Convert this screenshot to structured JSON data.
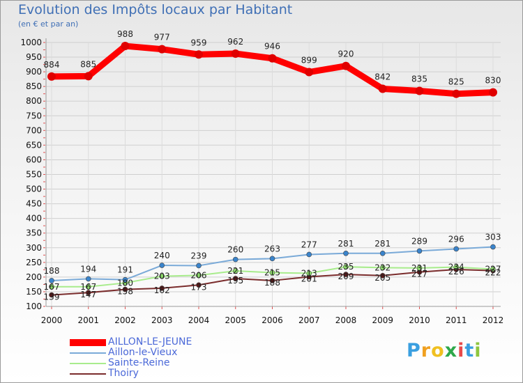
{
  "chart_data": {
    "type": "line",
    "title": "Evolution des Impôts locaux par Habitant",
    "subtitle": "(en € et par an)",
    "xlabel": "",
    "ylabel": "",
    "ylim": [
      100,
      1000
    ],
    "ytick_step": 50,
    "ytick_labels": [
      "100",
      "150",
      "200",
      "250",
      "300",
      "350",
      "400",
      "450",
      "500",
      "550",
      "600",
      "650",
      "700",
      "750",
      "800",
      "850",
      "900",
      "950",
      "1000"
    ],
    "categories": [
      "2000",
      "2001",
      "2002",
      "2003",
      "2004",
      "2005",
      "2006",
      "2007",
      "2008",
      "2009",
      "2010",
      "2011",
      "2012"
    ],
    "grid": true,
    "legend_position": "bottom-left",
    "series": [
      {
        "name": "AILLON-LE-JEUNE",
        "color": "#ff0000",
        "marker": "#e00000",
        "values": [
          884,
          885,
          988,
          977,
          959,
          962,
          946,
          899,
          920,
          842,
          835,
          825,
          830
        ]
      },
      {
        "name": "Aillon-le-Vieux",
        "color": "#7aaad8",
        "marker": "#3a84cc",
        "values": [
          188,
          194,
          191,
          240,
          239,
          260,
          263,
          277,
          281,
          281,
          289,
          296,
          303
        ]
      },
      {
        "name": "Sainte-Reine",
        "color": "#a8ec8c",
        "marker": "#8bd96a",
        "values": [
          167,
          167,
          180,
          203,
          206,
          221,
          215,
          213,
          235,
          232,
          231,
          234,
          227
        ]
      },
      {
        "name": "Thoiry",
        "color": "#7a2c2c",
        "marker": "#5a1818",
        "values": [
          139,
          147,
          158,
          162,
          173,
          195,
          188,
          201,
          209,
          205,
          217,
          226,
          222
        ]
      }
    ]
  },
  "logo": {
    "letters": [
      "P",
      "r",
      "o",
      "x",
      "i",
      "t",
      "i"
    ],
    "colors": [
      "#3a9fe0",
      "#f0a020",
      "#f0c020",
      "#2ea84a",
      "#e84a4a",
      "#3a9fe0",
      "#8ec63f"
    ]
  }
}
